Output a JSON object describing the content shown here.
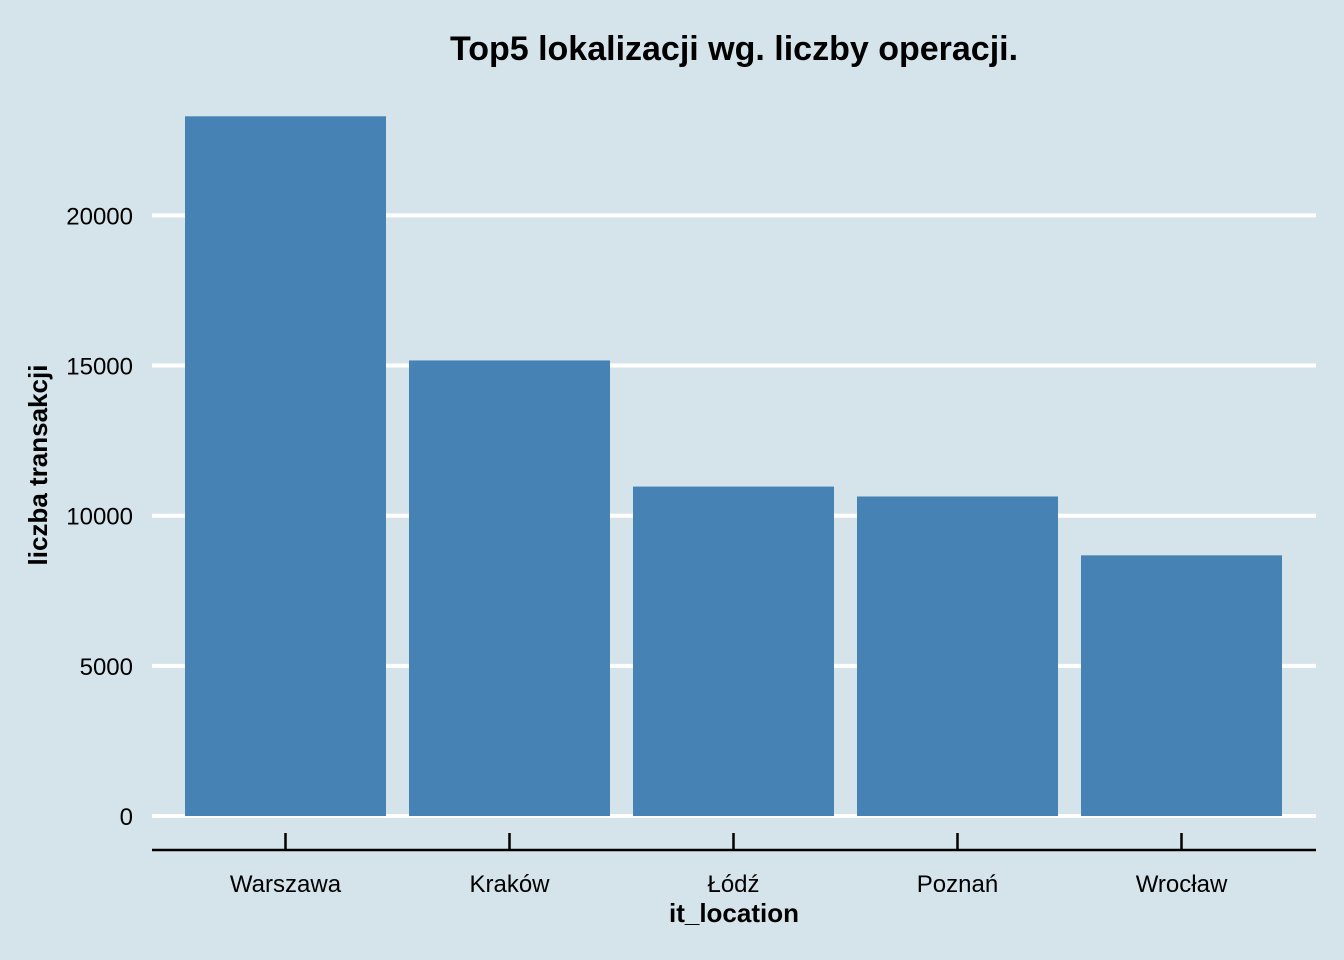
{
  "chart_data": {
    "type": "bar",
    "title": "Top5 lokalizacji wg. liczby operacji.",
    "xlabel": "it_location",
    "ylabel": "liczba transakcji",
    "categories": [
      "Warszawa",
      "Kraków",
      "Łódź",
      "Poznań",
      "Wrocław"
    ],
    "values": [
      23300,
      15170,
      10970,
      10640,
      8680
    ],
    "ylim": [
      0,
      24000
    ],
    "yticks": [
      0,
      5000,
      10000,
      15000,
      20000
    ],
    "ytick_labels": [
      "0",
      "5000",
      "10000",
      "15000",
      "20000"
    ],
    "grid": "horizontal-major",
    "legend": "none",
    "colors": {
      "bar": "#4682b4",
      "background": "#d5e4eb",
      "grid": "#ffffff",
      "axis": "#000000"
    }
  }
}
